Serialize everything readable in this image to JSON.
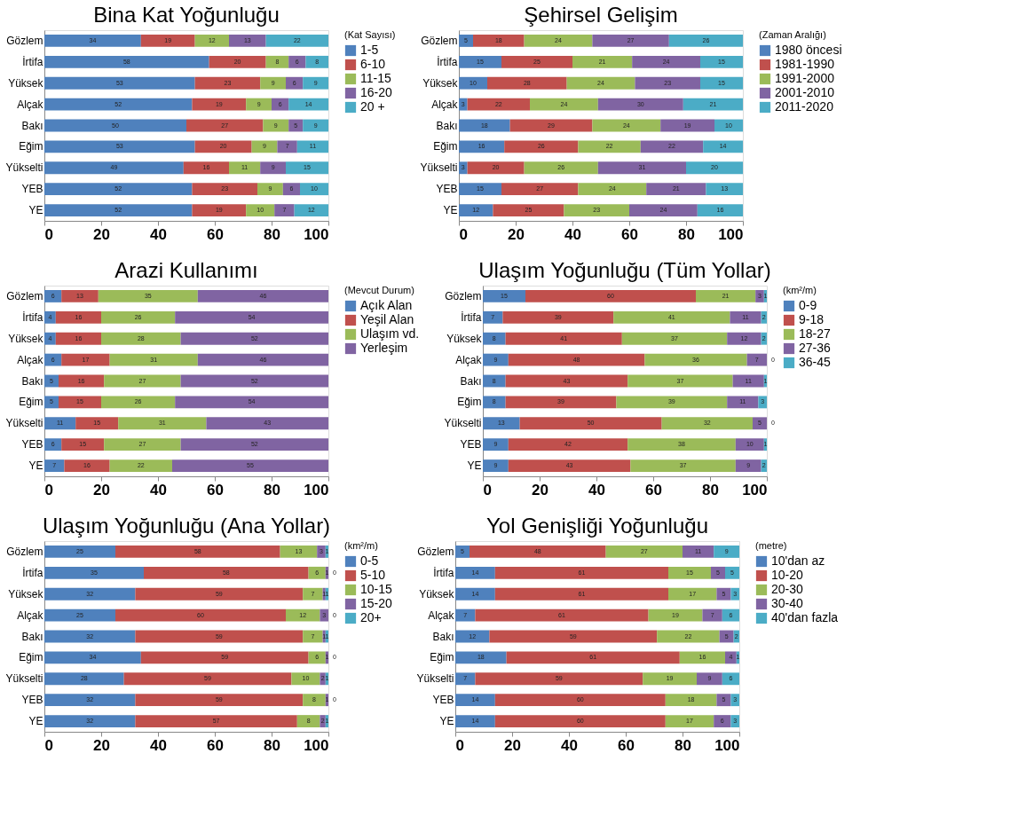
{
  "chart_data": [
    {
      "type": "bar",
      "orientation": "horizontal",
      "stacked": true,
      "data_labels": true,
      "legend": "top right",
      "title": "Bina Kat Yoğunluğu",
      "legend_title": "(Kat Sayısı)",
      "categories": [
        "Gözlem",
        "İrtifa",
        "Yüksek",
        "Alçak",
        "Bakı",
        "Eğim",
        "Yükselti",
        "YEB",
        "YE"
      ],
      "xlim": [
        0,
        100
      ],
      "xticks": [
        0,
        20,
        40,
        60,
        80,
        100
      ],
      "series": [
        {
          "name": "1-5",
          "color": "#4f81bd",
          "values": [
            34,
            58,
            53,
            52,
            50,
            53,
            49,
            52,
            52
          ]
        },
        {
          "name": "6-10",
          "color": "#c0504d",
          "values": [
            19,
            20,
            23,
            19,
            27,
            20,
            16,
            23,
            19
          ]
        },
        {
          "name": "11-15",
          "color": "#9bbb59",
          "values": [
            12,
            8,
            9,
            9,
            9,
            9,
            11,
            9,
            10
          ]
        },
        {
          "name": "16-20",
          "color": "#8064a2",
          "values": [
            13,
            6,
            6,
            6,
            5,
            7,
            9,
            6,
            7
          ]
        },
        {
          "name": "20 +",
          "color": "#4bacc6",
          "values": [
            22,
            8,
            9,
            14,
            9,
            11,
            15,
            10,
            12
          ]
        }
      ]
    },
    {
      "type": "bar",
      "orientation": "horizontal",
      "stacked": true,
      "data_labels": true,
      "legend": "top right",
      "title": "Şehirsel Gelişim",
      "legend_title": "(Zaman Aralığı)",
      "categories": [
        "Gözlem",
        "İrtifa",
        "Yüksek",
        "Alçak",
        "Bakı",
        "Eğim",
        "Yükselti",
        "YEB",
        "YE"
      ],
      "xlim": [
        0,
        100
      ],
      "xticks": [
        0,
        20,
        40,
        60,
        80,
        100
      ],
      "series": [
        {
          "name": "1980 öncesi",
          "color": "#4f81bd",
          "values": [
            5,
            15,
            10,
            3,
            18,
            16,
            3,
            15,
            12
          ]
        },
        {
          "name": "1981-1990",
          "color": "#c0504d",
          "values": [
            18,
            25,
            28,
            22,
            29,
            26,
            20,
            27,
            25
          ]
        },
        {
          "name": "1991-2000",
          "color": "#9bbb59",
          "values": [
            24,
            21,
            24,
            24,
            24,
            22,
            26,
            24,
            23
          ]
        },
        {
          "name": "2001-2010",
          "color": "#8064a2",
          "values": [
            27,
            24,
            23,
            30,
            19,
            22,
            31,
            21,
            24
          ]
        },
        {
          "name": "2011-2020",
          "color": "#4bacc6",
          "values": [
            26,
            15,
            15,
            21,
            10,
            14,
            20,
            13,
            16
          ]
        }
      ]
    },
    {
      "type": "bar",
      "orientation": "horizontal",
      "stacked": true,
      "data_labels": true,
      "legend": "top right",
      "title": "Arazi Kullanımı",
      "legend_title": "(Mevcut Durum)",
      "categories": [
        "Gözlem",
        "İrtifa",
        "Yüksek",
        "Alçak",
        "Bakı",
        "Eğim",
        "Yükselti",
        "YEB",
        "YE"
      ],
      "xlim": [
        0,
        100
      ],
      "xticks": [
        0,
        20,
        40,
        60,
        80,
        100
      ],
      "series": [
        {
          "name": "Açık Alan",
          "color": "#4f81bd",
          "values": [
            6,
            4,
            4,
            6,
            5,
            5,
            11,
            6,
            7
          ]
        },
        {
          "name": "Yeşil Alan",
          "color": "#c0504d",
          "values": [
            13,
            16,
            16,
            17,
            16,
            15,
            15,
            15,
            16
          ]
        },
        {
          "name": "Ulaşım vd.",
          "color": "#9bbb59",
          "values": [
            35,
            26,
            28,
            31,
            27,
            26,
            31,
            27,
            22
          ]
        },
        {
          "name": "Yerleşim",
          "color": "#8064a2",
          "values": [
            46,
            54,
            52,
            46,
            52,
            54,
            43,
            52,
            55
          ]
        }
      ]
    },
    {
      "type": "bar",
      "orientation": "horizontal",
      "stacked": true,
      "data_labels": true,
      "legend": "top right",
      "title": "Ulaşım Yoğunluğu (Tüm Yollar)",
      "legend_title": "(km²/m)",
      "categories": [
        "Gözlem",
        "İrtifa",
        "Yüksek",
        "Alçak",
        "Bakı",
        "Eğim",
        "Yükselti",
        "YEB",
        "YE"
      ],
      "xlim": [
        0,
        100
      ],
      "xticks": [
        0,
        20,
        40,
        60,
        80,
        100
      ],
      "series": [
        {
          "name": "0-9",
          "color": "#4f81bd",
          "values": [
            15,
            7,
            8,
            9,
            8,
            8,
            13,
            9,
            9
          ]
        },
        {
          "name": "9-18",
          "color": "#c0504d",
          "values": [
            60,
            39,
            41,
            48,
            43,
            39,
            50,
            42,
            43
          ]
        },
        {
          "name": "18-27",
          "color": "#9bbb59",
          "values": [
            21,
            41,
            37,
            36,
            37,
            39,
            32,
            38,
            37
          ]
        },
        {
          "name": "27-36",
          "color": "#8064a2",
          "values": [
            3,
            11,
            12,
            7,
            11,
            11,
            5,
            10,
            9
          ]
        },
        {
          "name": "36-45",
          "color": "#4bacc6",
          "values": [
            1,
            2,
            2,
            0,
            1,
            3,
            0,
            1,
            2
          ]
        }
      ]
    },
    {
      "type": "bar",
      "orientation": "horizontal",
      "stacked": true,
      "data_labels": true,
      "legend": "top right",
      "title": "Ulaşım Yoğunluğu (Ana Yollar)",
      "legend_title": "(km²/m)",
      "categories": [
        "Gözlem",
        "İrtifa",
        "Yüksek",
        "Alçak",
        "Bakı",
        "Eğim",
        "Yükselti",
        "YEB",
        "YE"
      ],
      "xlim": [
        0,
        100
      ],
      "xticks": [
        0,
        20,
        40,
        60,
        80,
        100
      ],
      "series": [
        {
          "name": "0-5",
          "color": "#4f81bd",
          "values": [
            25,
            35,
            32,
            25,
            32,
            34,
            28,
            32,
            32
          ]
        },
        {
          "name": "5-10",
          "color": "#c0504d",
          "values": [
            58,
            58,
            59,
            60,
            59,
            59,
            59,
            59,
            57
          ]
        },
        {
          "name": "10-15",
          "color": "#9bbb59",
          "values": [
            13,
            6,
            7,
            12,
            7,
            6,
            10,
            8,
            8
          ]
        },
        {
          "name": "15-20",
          "color": "#8064a2",
          "values": [
            3,
            1,
            1,
            3,
            1,
            1,
            2,
            1,
            2
          ]
        },
        {
          "name": "20+",
          "color": "#4bacc6",
          "values": [
            1,
            0,
            1,
            0,
            1,
            0,
            1,
            0,
            1
          ]
        }
      ]
    },
    {
      "type": "bar",
      "orientation": "horizontal",
      "stacked": true,
      "data_labels": true,
      "legend": "top right",
      "title": "Yol Genişliği Yoğunluğu",
      "legend_title": "(metre)",
      "categories": [
        "Gözlem",
        "İrtifa",
        "Yüksek",
        "Alçak",
        "Bakı",
        "Eğim",
        "Yükselti",
        "YEB",
        "YE"
      ],
      "xlim": [
        0,
        100
      ],
      "xticks": [
        0,
        20,
        40,
        60,
        80,
        100
      ],
      "series": [
        {
          "name": "10'dan az",
          "color": "#4f81bd",
          "values": [
            5,
            14,
            14,
            7,
            12,
            18,
            7,
            14,
            14
          ]
        },
        {
          "name": "10-20",
          "color": "#c0504d",
          "values": [
            48,
            61,
            61,
            61,
            59,
            61,
            59,
            60,
            60
          ]
        },
        {
          "name": "20-30",
          "color": "#9bbb59",
          "values": [
            27,
            15,
            17,
            19,
            22,
            16,
            19,
            18,
            17
          ]
        },
        {
          "name": "30-40",
          "color": "#8064a2",
          "values": [
            11,
            5,
            5,
            7,
            5,
            4,
            9,
            5,
            6
          ]
        },
        {
          "name": "40'dan fazla",
          "color": "#4bacc6",
          "values": [
            9,
            5,
            3,
            6,
            2,
            1,
            6,
            3,
            3
          ]
        }
      ]
    }
  ]
}
